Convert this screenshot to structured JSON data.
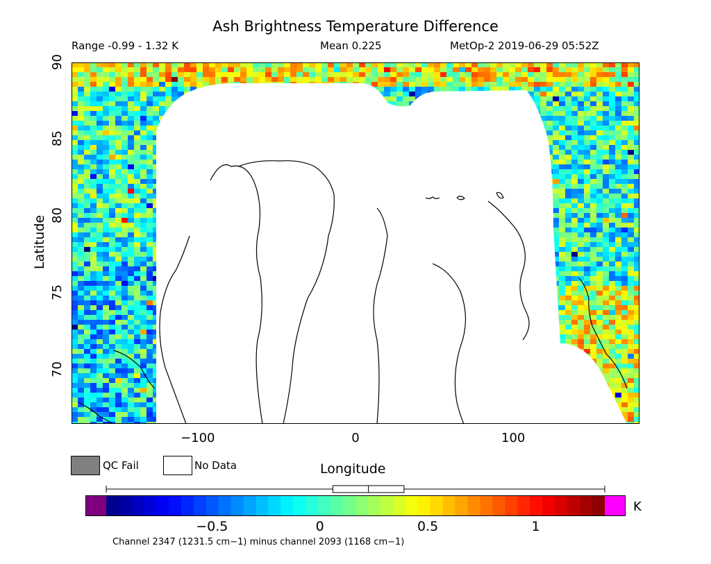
{
  "title": "Ash Brightness Temperature Difference",
  "header": {
    "range": "Range -0.99 - 1.32 K",
    "mean": "Mean 0.225",
    "satellite": "MetOp-2 2019-06-29 05:52Z"
  },
  "axes": {
    "xlabel": "Longitude",
    "ylabel": "Latitude",
    "xticks": [
      {
        "value": -100,
        "label": "−100"
      },
      {
        "value": 0,
        "label": "0"
      },
      {
        "value": 100,
        "label": "100"
      }
    ],
    "yticks": [
      {
        "value": 70,
        "label": "70"
      },
      {
        "value": 75,
        "label": "75"
      },
      {
        "value": 80,
        "label": "80"
      },
      {
        "value": 85,
        "label": "85"
      },
      {
        "value": 90,
        "label": "90"
      }
    ],
    "xlim": [
      -180,
      180
    ],
    "ylim": [
      66.5,
      90
    ]
  },
  "legend": {
    "qc_fail": "QC Fail",
    "no_data": "No Data",
    "qc_fail_color": "#808080",
    "no_data_color": "#ffffff"
  },
  "colorbar": {
    "unit": "K",
    "range": [
      -0.99,
      1.32
    ],
    "ticks": [
      {
        "value": -0.5,
        "label": "−0.5"
      },
      {
        "value": 0,
        "label": "0"
      },
      {
        "value": 0.5,
        "label": "0.5"
      },
      {
        "value": 1,
        "label": "1"
      }
    ],
    "under_color": "#800080",
    "over_color": "#ff00ff",
    "stops": [
      "#00007f",
      "#0000ff",
      "#007fff",
      "#00ffff",
      "#7fff7f",
      "#ffff00",
      "#ff7f00",
      "#ff0000",
      "#7f0000"
    ],
    "mean_value": 0.225,
    "box_range": [
      0.06,
      0.39
    ],
    "whisker_range": [
      -0.99,
      1.32
    ]
  },
  "caption": "Channel 2347 (1231.5 cm−1) minus channel 2093 (1168 cm−1)"
}
